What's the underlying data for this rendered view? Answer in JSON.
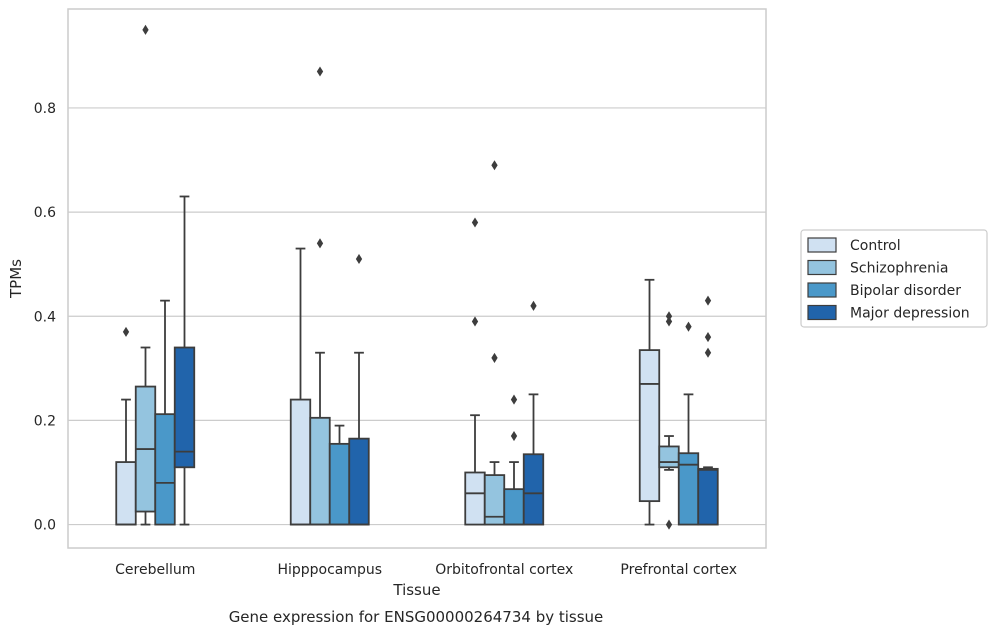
{
  "caption": "Gene expression for ENSG00000264734 by tissue",
  "chart_data": {
    "type": "box",
    "xlabel": "Tissue",
    "ylabel": "TPMs",
    "ylim": [
      -0.045,
      0.99
    ],
    "yticks": [
      "0.0",
      "0.2",
      "0.4",
      "0.6",
      "0.8"
    ],
    "grid": "horizontal",
    "legend_position": "right",
    "categories": [
      "Cerebellum",
      "Hipppocampus",
      "Orbitofrontal cortex",
      "Prefrontal cortex"
    ],
    "series": [
      {
        "name": "Control",
        "color": "#d0e1f2",
        "boxes": [
          {
            "whisker_low": 0,
            "q1": 0,
            "median": 0,
            "q3": 0.12,
            "whisker_high": 0.24,
            "outliers": [
              0.37
            ]
          },
          {
            "whisker_low": 0,
            "q1": 0,
            "median": 0,
            "q3": 0.24,
            "whisker_high": 0.53,
            "outliers": []
          },
          {
            "whisker_low": 0,
            "q1": 0,
            "median": 0.06,
            "q3": 0.1,
            "whisker_high": 0.21,
            "outliers": [
              0.39,
              0.58
            ]
          },
          {
            "whisker_low": 0,
            "q1": 0.045,
            "median": 0.27,
            "q3": 0.335,
            "whisker_high": 0.47,
            "outliers": []
          }
        ]
      },
      {
        "name": "Schizophrenia",
        "color": "#94c4df",
        "boxes": [
          {
            "whisker_low": 0,
            "q1": 0.025,
            "median": 0.145,
            "q3": 0.265,
            "whisker_high": 0.34,
            "outliers": [
              0.95
            ]
          },
          {
            "whisker_low": 0,
            "q1": 0,
            "median": 0,
            "q3": 0.205,
            "whisker_high": 0.33,
            "outliers": [
              0.54,
              0.87
            ]
          },
          {
            "whisker_low": 0,
            "q1": 0,
            "median": 0.015,
            "q3": 0.095,
            "whisker_high": 0.12,
            "outliers": [
              0.32,
              0.69
            ]
          },
          {
            "whisker_low": 0.105,
            "q1": 0.11,
            "median": 0.12,
            "q3": 0.15,
            "whisker_high": 0.17,
            "outliers": [
              0,
              0.39,
              0.4
            ]
          }
        ]
      },
      {
        "name": "Bipolar disorder",
        "color": "#4a98c9",
        "boxes": [
          {
            "whisker_low": 0,
            "q1": 0,
            "median": 0.08,
            "q3": 0.212,
            "whisker_high": 0.43,
            "outliers": []
          },
          {
            "whisker_low": 0,
            "q1": 0,
            "median": 0,
            "q3": 0.155,
            "whisker_high": 0.19,
            "outliers": []
          },
          {
            "whisker_low": 0,
            "q1": 0,
            "median": 0,
            "q3": 0.068,
            "whisker_high": 0.12,
            "outliers": [
              0.17,
              0.24
            ]
          },
          {
            "whisker_low": 0,
            "q1": 0,
            "median": 0.115,
            "q3": 0.137,
            "whisker_high": 0.25,
            "outliers": [
              0.38
            ]
          }
        ]
      },
      {
        "name": "Major depression",
        "color": "#2164ab",
        "boxes": [
          {
            "whisker_low": 0,
            "q1": 0.11,
            "median": 0.14,
            "q3": 0.34,
            "whisker_high": 0.63,
            "outliers": []
          },
          {
            "whisker_low": 0,
            "q1": 0,
            "median": 0,
            "q3": 0.165,
            "whisker_high": 0.33,
            "outliers": [
              0.51
            ]
          },
          {
            "whisker_low": 0,
            "q1": 0,
            "median": 0.06,
            "q3": 0.135,
            "whisker_high": 0.25,
            "outliers": [
              0.42
            ]
          },
          {
            "whisker_low": 0,
            "q1": 0,
            "median": 0.105,
            "q3": 0.107,
            "whisker_high": 0.11,
            "outliers": [
              0.33,
              0.36,
              0.43
            ]
          }
        ]
      }
    ]
  }
}
